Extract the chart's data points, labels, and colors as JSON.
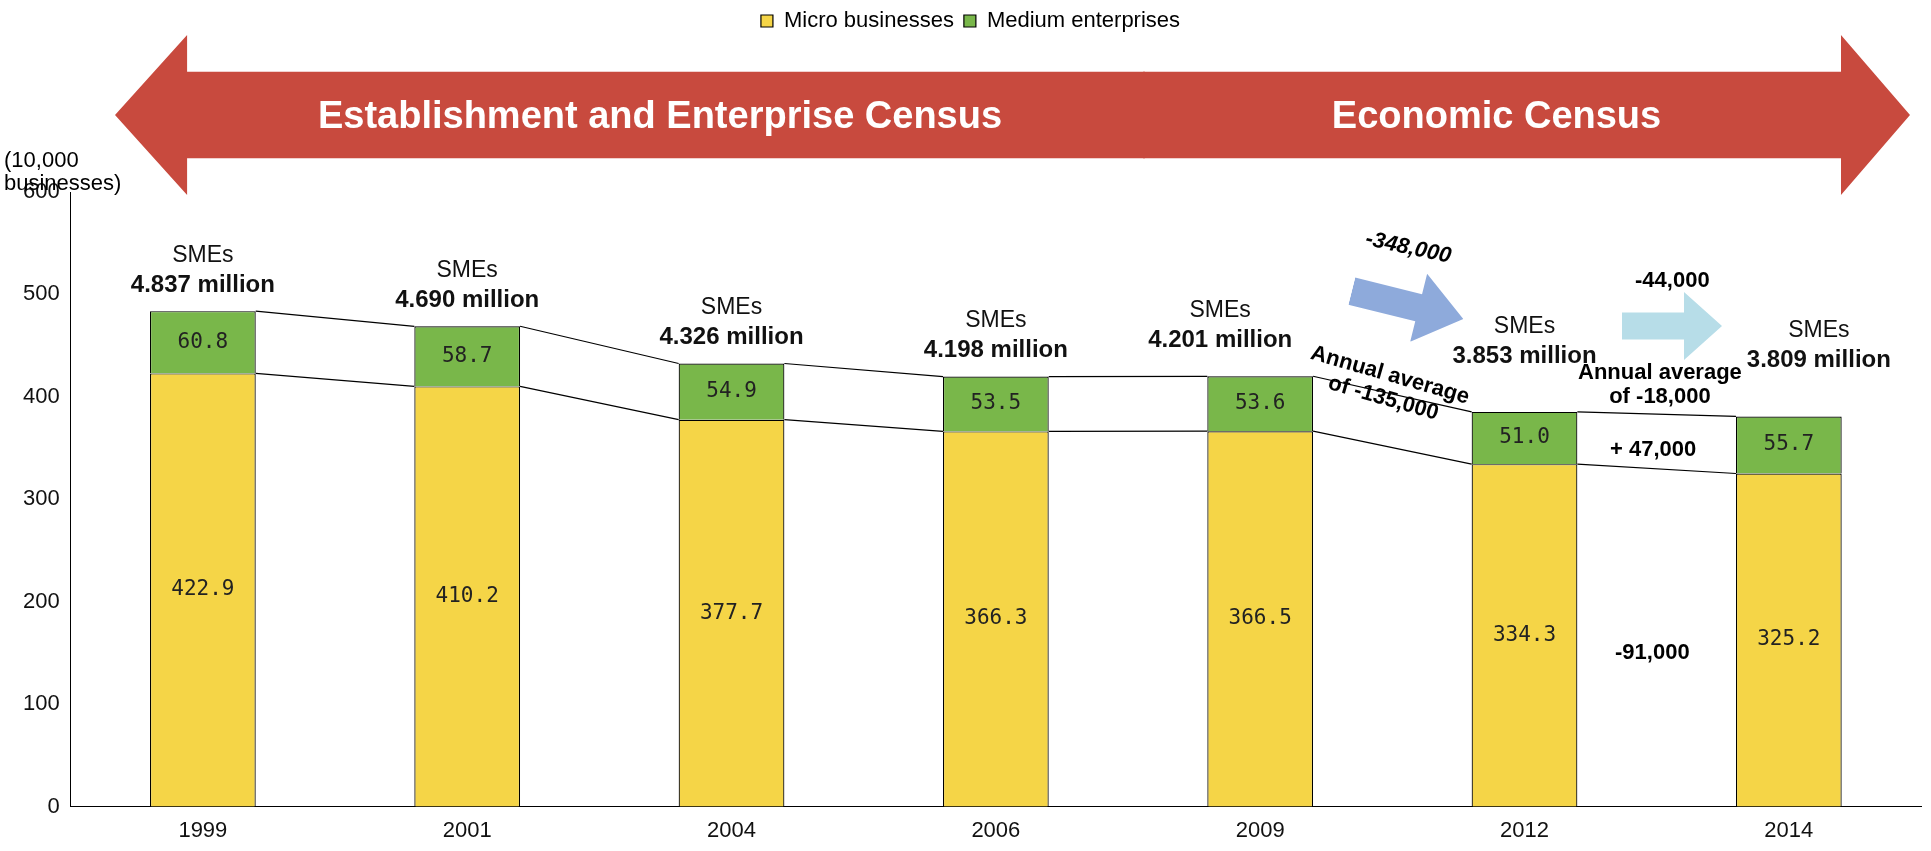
{
  "chart_data": {
    "type": "bar",
    "stacked": true,
    "ylabel": "(10,000 businesses)",
    "categories": [
      "1999",
      "2001",
      "2004",
      "2006",
      "2009",
      "2012",
      "2014"
    ],
    "series": [
      {
        "name": "Micro businesses",
        "color": "#f5d547",
        "values": [
          422.9,
          410.2,
          377.7,
          366.3,
          366.5,
          334.3,
          325.2
        ],
        "value_labels": [
          "422.9",
          "410.2",
          "377.7",
          "366.3",
          "366.5",
          "334.3",
          "325.2"
        ]
      },
      {
        "name": "Medium enterprises",
        "color": "#79b74a",
        "values": [
          60.8,
          58.7,
          54.9,
          53.5,
          53.6,
          51.0,
          55.7
        ],
        "value_labels": [
          "60.8",
          "58.7",
          "54.9",
          "53.5",
          "53.6",
          "51.0",
          "55.7"
        ]
      }
    ],
    "ylim": [
      0,
      600
    ],
    "yticks": [
      0,
      100,
      200,
      300,
      400,
      500,
      600
    ],
    "grid": false,
    "legend": "top",
    "totals": [
      "SMEs\n4.837 million",
      "SMEs\n4.690 million",
      "SMEs\n4.326 million",
      "SMEs\n4.198 million",
      "SMEs\n4.201 million",
      "SMEs\n3.853 million",
      "SMEs\n3.809 million"
    ],
    "annotations": [
      "Establishment and Enterprise Census",
      "Economic Census",
      "-348,000",
      "Annual average\nof -135,000",
      "-44,000",
      "Annual average\nof -18,000",
      "+ 47,000",
      "-91,000"
    ]
  }
}
